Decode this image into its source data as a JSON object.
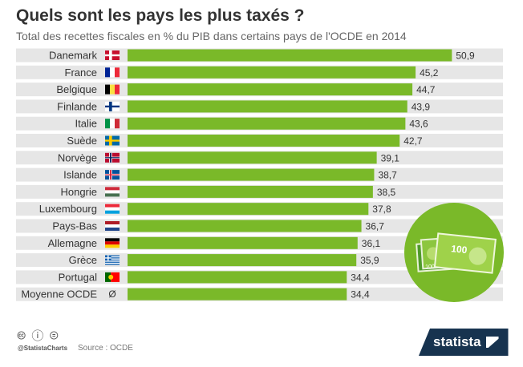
{
  "header": {
    "title": "Quels sont les pays les plus taxés ?",
    "subtitle": "Total des recettes fiscales en % du PIB dans certains pays de l'OCDE en 2014"
  },
  "chart_data": {
    "type": "bar",
    "orientation": "horizontal",
    "title": "Quels sont les pays les plus taxés ?",
    "subtitle": "Total des recettes fiscales en % du PIB dans certains pays de l'OCDE en 2014",
    "categories": [
      "Danemark",
      "France",
      "Belgique",
      "Finlande",
      "Italie",
      "Suède",
      "Norvège",
      "Islande",
      "Hongrie",
      "Luxembourg",
      "Pays-Bas",
      "Allemagne",
      "Grèce",
      "Portugal",
      "Moyenne OCDE"
    ],
    "values": [
      50.9,
      45.2,
      44.7,
      43.9,
      43.6,
      42.7,
      39.1,
      38.7,
      38.5,
      37.8,
      36.7,
      36.1,
      35.9,
      34.4,
      34.4
    ],
    "value_labels": [
      "50,9",
      "45,2",
      "44,7",
      "43,9",
      "43,6",
      "42,7",
      "39,1",
      "38,7",
      "38,5",
      "37,8",
      "36,7",
      "36,1",
      "35,9",
      "34,4",
      "34,4"
    ],
    "flags": [
      "flag-denmark",
      "flag-france",
      "flag-belgium",
      "flag-finland",
      "flag-italy",
      "flag-sweden",
      "flag-norway",
      "flag-iceland",
      "flag-hungary",
      "flag-luxembourg",
      "flag-netherlands",
      "flag-germany",
      "flag-greece",
      "flag-portugal",
      "empty-set-symbol"
    ],
    "oecd_symbol": "Ø",
    "xlim": [
      0,
      54
    ],
    "bar_color": "#7ab929",
    "row_band_color": "#e6e6e6",
    "grid": false
  },
  "footer": {
    "license_icons": "🅭 ⓘ ⊜",
    "handle": "@StatistaCharts",
    "source": "Source : OCDE",
    "brand": "statista"
  },
  "illustration": {
    "icon": "money-banknotes-icon",
    "banknote_label": "100",
    "circle_color": "#7ab929"
  }
}
